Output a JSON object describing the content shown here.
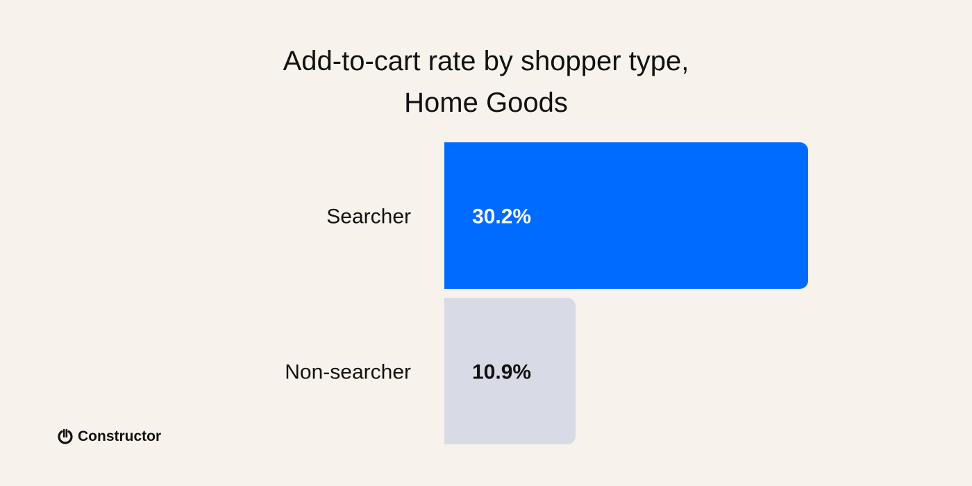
{
  "chart_data": {
    "type": "bar",
    "orientation": "horizontal",
    "title": [
      "Add-to-cart rate by shopper type,",
      "Home Goods"
    ],
    "categories": [
      "Searcher",
      "Non-searcher"
    ],
    "values": [
      30.2,
      10.9
    ],
    "data_labels": [
      "30.2%",
      "10.9%"
    ],
    "unit": "%",
    "colors": [
      "#006bff",
      "#d8dbe5"
    ],
    "label_colors": [
      "#ffffff",
      "#111111"
    ],
    "grid": false,
    "legend": "none"
  },
  "branding": {
    "logo_text": "Constructor",
    "logo_icon": "power-icon"
  },
  "colors": {
    "background": "#f7f3ec"
  }
}
